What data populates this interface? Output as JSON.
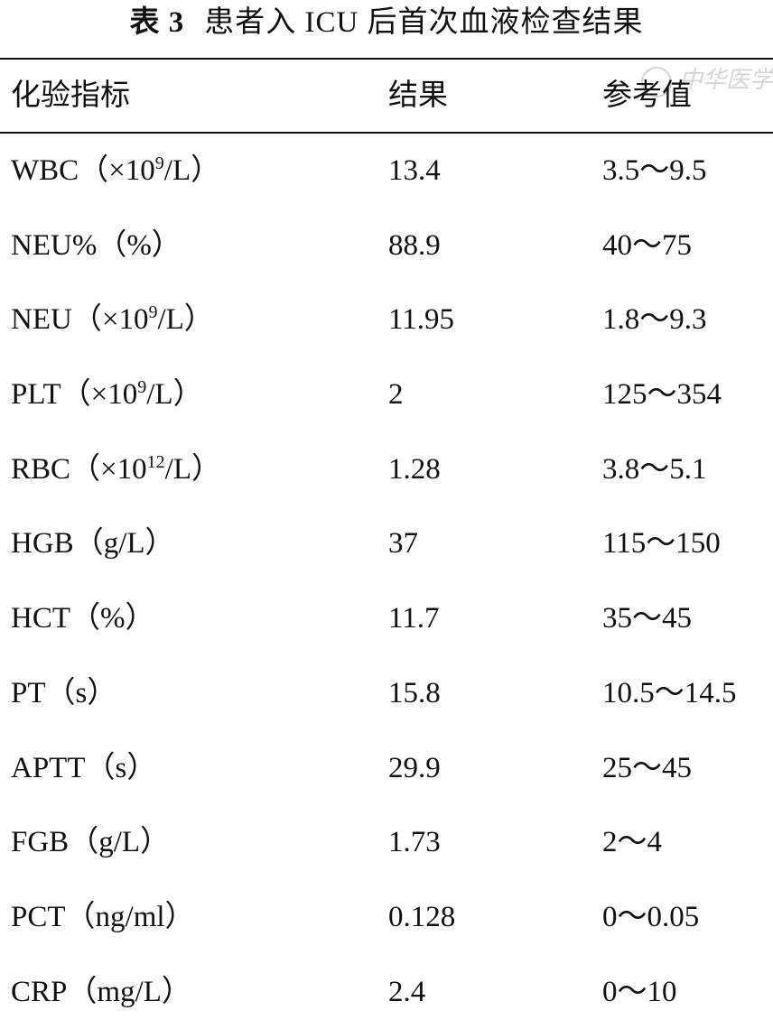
{
  "caption": {
    "label": "表 3",
    "title": "患者入 ICU 后首次血液检查结果"
  },
  "watermark": "中华医学",
  "table": {
    "headers": [
      "化验指标",
      "结果",
      "参考值"
    ],
    "rows": [
      {
        "name": "WBC",
        "unit_pre": "（×10",
        "unit_sup": "9",
        "unit_post": "/L）",
        "result": "13.4",
        "reference": "3.5～9.5"
      },
      {
        "name": "NEU%",
        "unit_pre": "（%）",
        "unit_sup": "",
        "unit_post": "",
        "result": "88.9",
        "reference": "40～75"
      },
      {
        "name": "NEU",
        "unit_pre": "（×10",
        "unit_sup": "9",
        "unit_post": "/L）",
        "result": "11.95",
        "reference": "1.8～9.3"
      },
      {
        "name": "PLT",
        "unit_pre": "（×10",
        "unit_sup": "9",
        "unit_post": "/L）",
        "result": "2",
        "reference": "125～354"
      },
      {
        "name": "RBC",
        "unit_pre": "（×10",
        "unit_sup": "12",
        "unit_post": "/L）",
        "result": "1.28",
        "reference": "3.8～5.1"
      },
      {
        "name": "HGB",
        "unit_pre": "（g/L）",
        "unit_sup": "",
        "unit_post": "",
        "result": "37",
        "reference": "115～150"
      },
      {
        "name": "HCT",
        "unit_pre": "（%）",
        "unit_sup": "",
        "unit_post": "",
        "result": "11.7",
        "reference": "35～45"
      },
      {
        "name": "PT",
        "unit_pre": "（s）",
        "unit_sup": "",
        "unit_post": "",
        "result": "15.8",
        "reference": "10.5～14.5"
      },
      {
        "name": "APTT",
        "unit_pre": "（s）",
        "unit_sup": "",
        "unit_post": "",
        "result": "29.9",
        "reference": "25～45"
      },
      {
        "name": "FGB",
        "unit_pre": "（g/L）",
        "unit_sup": "",
        "unit_post": "",
        "result": "1.73",
        "reference": "2～4"
      },
      {
        "name": "PCT",
        "unit_pre": "（ng/ml）",
        "unit_sup": "",
        "unit_post": "",
        "result": "0.128",
        "reference": "0～0.05"
      },
      {
        "name": "CRP",
        "unit_pre": "（mg/L）",
        "unit_sup": "",
        "unit_post": "",
        "result": "2.4",
        "reference": "0～10"
      }
    ]
  }
}
